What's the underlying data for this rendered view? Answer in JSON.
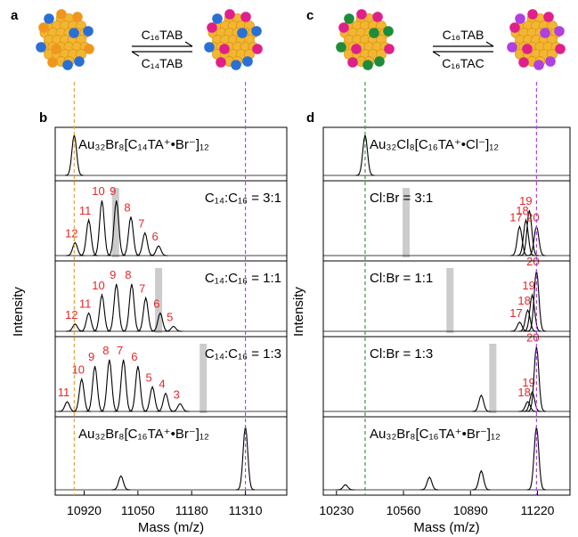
{
  "chart_data": [
    {
      "type": "spectrum",
      "scheme_label": "a",
      "panel_label": "b",
      "reagents": [
        "C₁₆TAB",
        "C₁₄TAB"
      ],
      "xlabel": "Mass (m/z)",
      "ylabel": "Intensity",
      "xlim": [
        10850,
        11410
      ],
      "xticks": [
        10920,
        11050,
        11180,
        11310
      ],
      "ylim": [
        0,
        1.1
      ],
      "line_color": "#000000",
      "label_color": "#e8262a",
      "shade_color": "#cccccc",
      "guides": [
        {
          "value": 10896,
          "color": "#e8a33a"
        },
        {
          "value": 11310,
          "color": "#b044e6"
        }
      ],
      "panels": [
        {
          "title": "Au₃₂Br₈[C₁₄TA⁺•Br⁻]₁₂",
          "peaks": [
            {
              "mass": 10896,
              "height": 1.0
            }
          ]
        },
        {
          "title": "C₁₄:C₁₆ = 3:1",
          "shade": 10996,
          "peaks": [
            {
              "mass": 10898,
              "height": 0.2,
              "label": 12
            },
            {
              "mass": 10931,
              "height": 0.55,
              "label": 11
            },
            {
              "mass": 10963,
              "height": 0.85,
              "label": 10
            },
            {
              "mass": 10998,
              "height": 0.85,
              "label": 9
            },
            {
              "mass": 11033,
              "height": 0.6,
              "label": 8
            },
            {
              "mass": 11067,
              "height": 0.35,
              "label": 7
            },
            {
              "mass": 11100,
              "height": 0.15,
              "label": 6
            }
          ]
        },
        {
          "title": "C₁₄:C₁₆ = 1:1",
          "shade": 11100,
          "peaks": [
            {
              "mass": 10898,
              "height": 0.12,
              "label": 12
            },
            {
              "mass": 10931,
              "height": 0.3,
              "label": 11
            },
            {
              "mass": 10963,
              "height": 0.6,
              "label": 10
            },
            {
              "mass": 10998,
              "height": 0.78,
              "label": 9
            },
            {
              "mass": 11035,
              "height": 0.78,
              "label": 8
            },
            {
              "mass": 11069,
              "height": 0.55,
              "label": 7
            },
            {
              "mass": 11104,
              "height": 0.3,
              "label": 6
            },
            {
              "mass": 11136,
              "height": 0.08,
              "label": 5
            }
          ]
        },
        {
          "title": "C₁₄:C₁₆ = 1:3",
          "shade": 11208,
          "peaks": [
            {
              "mass": 10879,
              "height": 0.15,
              "label": 11
            },
            {
              "mass": 10914,
              "height": 0.5,
              "label": 10
            },
            {
              "mass": 10946,
              "height": 0.7,
              "label": 9
            },
            {
              "mass": 10981,
              "height": 0.8,
              "label": 8
            },
            {
              "mass": 11015,
              "height": 0.8,
              "label": 7
            },
            {
              "mass": 11050,
              "height": 0.7,
              "label": 6
            },
            {
              "mass": 11085,
              "height": 0.38,
              "label": 5
            },
            {
              "mass": 11117,
              "height": 0.28,
              "label": 4
            },
            {
              "mass": 11152,
              "height": 0.12,
              "label": 3
            }
          ]
        },
        {
          "title": "Au₃₂Br₈[C₁₆TA⁺•Br⁻]₁₂",
          "peaks": [
            {
              "mass": 11009,
              "height": 0.22
            },
            {
              "mass": 11310,
              "height": 1.0
            }
          ]
        }
      ]
    },
    {
      "type": "spectrum",
      "scheme_label": "c",
      "panel_label": "d",
      "reagents": [
        "C₁₆TAB",
        "C₁₆TAC"
      ],
      "xlabel": "Mass (m/z)",
      "ylabel": "Intensity",
      "xlim": [
        10165,
        11380
      ],
      "xticks": [
        10230,
        10560,
        10890,
        11220
      ],
      "ylim": [
        0,
        1.1
      ],
      "line_color": "#000000",
      "label_color": "#e8262a",
      "shade_color": "#cccccc",
      "guides": [
        {
          "value": 10371,
          "color": "#3a9a3a"
        },
        {
          "value": 11215,
          "color": "#b044e6"
        }
      ],
      "panels": [
        {
          "title": "Au₃₂Cl₈[C₁₆TA⁺•Cl⁻]₁₂",
          "peaks": [
            {
              "mass": 10371,
              "height": 1.0
            }
          ]
        },
        {
          "title": "Cl:Br = 3:1",
          "shade": 10573,
          "peaks": [
            {
              "mass": 11132,
              "height": 0.45,
              "label": 17
            },
            {
              "mass": 11163,
              "height": 0.55,
              "label": 18
            },
            {
              "mass": 11180,
              "height": 0.7,
              "label": 19
            },
            {
              "mass": 11215,
              "height": 0.45,
              "label": 20
            }
          ]
        },
        {
          "title": "Cl:Br = 1:1",
          "shade": 10789,
          "peaks": [
            {
              "mass": 11132,
              "height": 0.15,
              "label": 17
            },
            {
              "mass": 11172,
              "height": 0.35,
              "label": 18
            },
            {
              "mass": 11194,
              "height": 0.6,
              "label": 19
            },
            {
              "mass": 11215,
              "height": 1.0,
              "label": 20
            }
          ]
        },
        {
          "title": "Cl:Br = 1:3",
          "shade": 11000,
          "peaks": [
            {
              "mass": 10943,
              "height": 0.25
            },
            {
              "mass": 11172,
              "height": 0.15,
              "label": 18
            },
            {
              "mass": 11194,
              "height": 0.3,
              "label": 19
            },
            {
              "mass": 11215,
              "height": 1.0,
              "label": 20
            }
          ]
        },
        {
          "title": "Au₃₂Br₈[C₁₆TA⁺•Br⁻]₁₂",
          "peaks": [
            {
              "mass": 10274,
              "height": 0.08
            },
            {
              "mass": 10688,
              "height": 0.2
            },
            {
              "mass": 10943,
              "height": 0.3
            },
            {
              "mass": 11215,
              "height": 1.0
            }
          ]
        }
      ]
    }
  ]
}
